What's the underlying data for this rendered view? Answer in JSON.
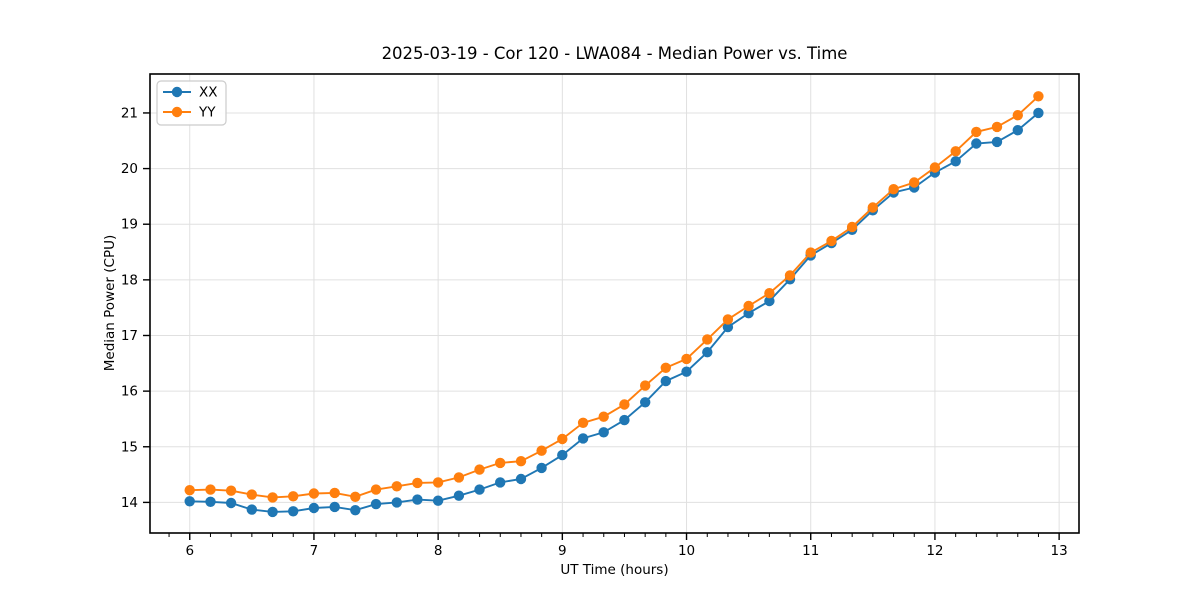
{
  "chart_data": {
    "type": "line",
    "title": "2025-03-19 - Cor 120 - LWA084 - Median Power vs. Time",
    "xlabel": "UT Time (hours)",
    "ylabel": "Median Power (CPU)",
    "xlim": [
      5.68,
      13.16
    ],
    "ylim": [
      13.45,
      21.7
    ],
    "x_ticks": [
      6,
      7,
      8,
      9,
      10,
      11,
      12,
      13
    ],
    "y_ticks": [
      14,
      15,
      16,
      17,
      18,
      19,
      20,
      21
    ],
    "x_minor_step": 0.16667,
    "grid": true,
    "legend_position": "upper-left",
    "x": [
      6.0,
      6.167,
      6.333,
      6.5,
      6.667,
      6.833,
      7.0,
      7.167,
      7.333,
      7.5,
      7.667,
      7.833,
      8.0,
      8.167,
      8.333,
      8.5,
      8.667,
      8.833,
      9.0,
      9.167,
      9.333,
      9.5,
      9.667,
      9.833,
      10.0,
      10.167,
      10.333,
      10.5,
      10.667,
      10.833,
      11.0,
      11.167,
      11.333,
      11.5,
      11.667,
      11.833,
      12.0,
      12.167,
      12.333,
      12.5,
      12.667,
      12.833
    ],
    "series": [
      {
        "name": "XX",
        "color": "#1f77b4",
        "values": [
          14.02,
          14.01,
          13.99,
          13.87,
          13.83,
          13.84,
          13.9,
          13.92,
          13.86,
          13.97,
          14.0,
          14.05,
          14.03,
          14.12,
          14.23,
          14.36,
          14.42,
          14.62,
          14.85,
          15.15,
          15.26,
          15.48,
          15.8,
          16.18,
          16.35,
          16.7,
          17.15,
          17.4,
          17.62,
          18.01,
          18.44,
          18.66,
          18.9,
          19.25,
          19.57,
          19.66,
          19.93,
          20.13,
          20.45,
          20.48,
          20.69,
          21.0
        ]
      },
      {
        "name": "YY",
        "color": "#ff7f0e",
        "values": [
          14.22,
          14.23,
          14.21,
          14.14,
          14.09,
          14.11,
          14.16,
          14.17,
          14.1,
          14.23,
          14.29,
          14.35,
          14.36,
          14.45,
          14.59,
          14.71,
          14.74,
          14.93,
          15.14,
          15.43,
          15.54,
          15.76,
          16.1,
          16.42,
          16.58,
          16.93,
          17.29,
          17.53,
          17.76,
          18.08,
          18.49,
          18.7,
          18.95,
          19.3,
          19.63,
          19.75,
          20.02,
          20.31,
          20.66,
          20.75,
          20.96,
          21.3
        ]
      }
    ],
    "style": {
      "grid_color": "#e0e0e0",
      "spine_color": "#000000",
      "tick_color": "#000000",
      "background": "#ffffff",
      "legend_border": "#cccccc"
    }
  }
}
